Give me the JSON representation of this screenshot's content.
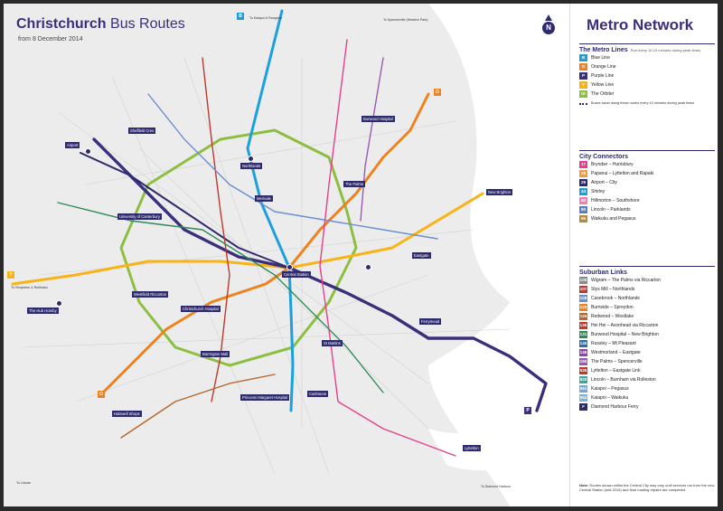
{
  "map": {
    "title_bold": "Christchurch",
    "title_rest": "Bus Routes",
    "subtitle": "from 8 December 2014",
    "compass_label": "N",
    "places": [
      {
        "key": "airport",
        "label": "Airport"
      },
      {
        "key": "sheffield",
        "label": "Sheffield Cres"
      },
      {
        "key": "northlands",
        "label": "Northlands"
      },
      {
        "key": "merivale",
        "label": "Merivale"
      },
      {
        "key": "burwood",
        "label": "Burwood Hospital"
      },
      {
        "key": "palms",
        "label": "The Palms"
      },
      {
        "key": "newbrighton",
        "label": "New Brighton"
      },
      {
        "key": "uc",
        "label": "University of Canterbury"
      },
      {
        "key": "eastgate",
        "label": "Eastgate"
      },
      {
        "key": "central",
        "label": "Central Station"
      },
      {
        "key": "hub",
        "label": "The Hub Hornby"
      },
      {
        "key": "westfield",
        "label": "Westfield Riccarton"
      },
      {
        "key": "chch_hosp",
        "label": "Christchurch Hospital"
      },
      {
        "key": "barrington",
        "label": "Barrington Mall"
      },
      {
        "key": "ferrymead",
        "label": "Ferrymead"
      },
      {
        "key": "stmartins",
        "label": "St Martins"
      },
      {
        "key": "princess",
        "label": "Princess Margaret Hospital"
      },
      {
        "key": "cashmere",
        "label": "Cashmere"
      },
      {
        "key": "halswell",
        "label": "Halswell Shops"
      },
      {
        "key": "lyttelton",
        "label": "Lyttelton"
      },
      {
        "key": "templeton",
        "label": "To Templeton & Rolleston"
      },
      {
        "key": "lincoln",
        "label": "To Lincoln"
      },
      {
        "key": "kaiapoi",
        "label": "To Kaiapoi & Rangiora"
      },
      {
        "key": "spencerville",
        "label": "To Spencerville (Western Park)"
      },
      {
        "key": "diamond",
        "label": "To Diamond Harbour"
      }
    ],
    "terminals": [
      "B",
      "O",
      "P",
      "Y",
      "Or"
    ]
  },
  "panel": {
    "title": "Metro Network",
    "metro": {
      "heading": "The Metro Lines",
      "subheading": "Run every 10-15 minutes during peak times",
      "lines": [
        {
          "code": "B",
          "label": "Blue Line",
          "color": "#1ba0dc"
        },
        {
          "code": "O",
          "label": "Orange Line",
          "color": "#f0821e"
        },
        {
          "code": "P",
          "label": "Purple Line",
          "color": "#3a2f7a"
        },
        {
          "code": "Y",
          "label": "Yellow Line",
          "color": "#f9b315"
        },
        {
          "code": "Or",
          "label": "The Orbiter",
          "color": "#8cbf3f"
        }
      ],
      "note": "Buses travel along these routes every 10 minutes during peak times"
    },
    "connectors": {
      "heading": "City Connectors",
      "items": [
        {
          "code": "17",
          "label": "Bryndwr – Huntsbury",
          "color": "#e83e8c"
        },
        {
          "code": "28",
          "label": "Papanui – Lyttelton and Rapaki",
          "color": "#f59a3c"
        },
        {
          "code": "29",
          "label": "Airport – City",
          "color": "#2d2a6e"
        },
        {
          "code": "44",
          "label": "Shirley",
          "color": "#1ba0dc"
        },
        {
          "code": "60",
          "label": "Hillmorton – Southshore",
          "color": "#ef7fb6"
        },
        {
          "code": "80",
          "label": "Lincoln – Parklands",
          "color": "#5b7fc0"
        },
        {
          "code": "95",
          "label": "Waikuku and Pegasus",
          "color": "#b58a3a"
        }
      ]
    },
    "suburban": {
      "heading": "Suburban Links",
      "items": [
        {
          "code": "100",
          "label": "Wigram – The Palms via Riccarton",
          "color": "#8a8a8a"
        },
        {
          "code": "107",
          "label": "Styx Mill – Northlands",
          "color": "#c0392b"
        },
        {
          "code": "108",
          "label": "Casebrook – Northlands",
          "color": "#6b8fcf"
        },
        {
          "code": "120",
          "label": "Burnside – Spreydon",
          "color": "#f0821e"
        },
        {
          "code": "125",
          "label": "Redwood – Westlake",
          "color": "#b5652e"
        },
        {
          "code": "130",
          "label": "Hei Hei – Avonhead via Riccarton",
          "color": "#c0392b"
        },
        {
          "code": "131",
          "label": "Burwood Hospital – New Brighton",
          "color": "#2e8b57"
        },
        {
          "code": "140",
          "label": "Russley – Mt Pleasant",
          "color": "#2d6fa3"
        },
        {
          "code": "145",
          "label": "Westmorland – Eastgate",
          "color": "#8e44ad"
        },
        {
          "code": "150",
          "label": "The Palms – Spencerville",
          "color": "#9b59b6"
        },
        {
          "code": "535",
          "label": "Lyttelton – Eastgate Link",
          "color": "#c0392b"
        },
        {
          "code": "820",
          "label": "Lincoln – Burnham via Rolleston",
          "color": "#3aa6a0"
        },
        {
          "code": "951",
          "label": "Kaiapoi – Pegasus",
          "color": "#6fa8dc"
        },
        {
          "code": "952",
          "label": "Kaiapoi – Waikuku",
          "color": "#7fb3d5"
        },
        {
          "code": "F",
          "label": "Diamond Harbour Ferry",
          "color": "#2d2a6e"
        }
      ]
    },
    "footnote_bold": "Note:",
    "footnote": "Routes shown within the Central City may vary until services run from the new Central Station (mid 2015) and final roading repairs are completed."
  }
}
